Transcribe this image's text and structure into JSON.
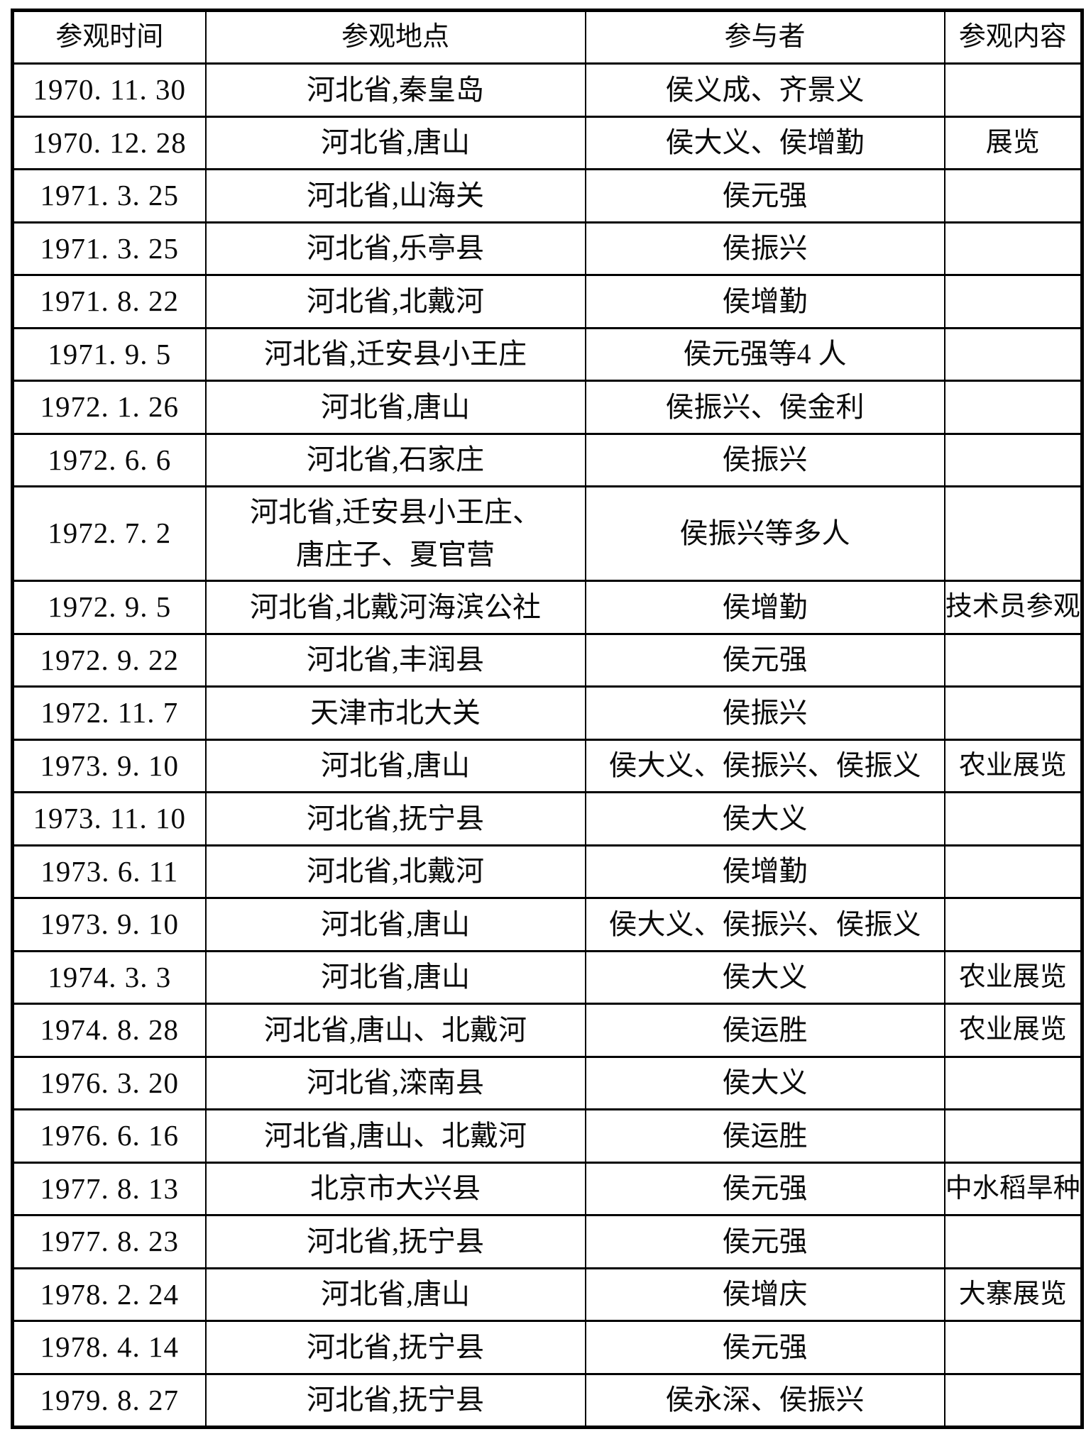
{
  "table": {
    "headers": [
      "参观时间",
      "参观地点",
      "参与者",
      "参观内容"
    ],
    "rows": [
      {
        "time": "1970. 11. 30",
        "location": "河北省,秦皇岛",
        "participants": "侯义成、齐景义",
        "content": ""
      },
      {
        "time": "1970. 12. 28",
        "location": "河北省,唐山",
        "participants": "侯大义、侯增勤",
        "content": "展览"
      },
      {
        "time": "1971. 3. 25",
        "location": "河北省,山海关",
        "participants": "侯元强",
        "content": ""
      },
      {
        "time": "1971. 3. 25",
        "location": "河北省,乐亭县",
        "participants": "侯振兴",
        "content": ""
      },
      {
        "time": "1971. 8. 22",
        "location": "河北省,北戴河",
        "participants": "侯增勤",
        "content": ""
      },
      {
        "time": "1971. 9. 5",
        "location": "河北省,迁安县小王庄",
        "participants": "侯元强等4 人",
        "content": ""
      },
      {
        "time": "1972. 1. 26",
        "location": "河北省,唐山",
        "participants": "侯振兴、侯金利",
        "content": ""
      },
      {
        "time": "1972. 6. 6",
        "location": "河北省,石家庄",
        "participants": "侯振兴",
        "content": ""
      },
      {
        "time": "1972. 7. 2",
        "location": "河北省,迁安县小王庄、\n唐庄子、夏官营",
        "participants": "侯振兴等多人",
        "content": ""
      },
      {
        "time": "1972. 9. 5",
        "location": "河北省,北戴河海滨公社",
        "participants": "侯增勤",
        "content": "技术员参观"
      },
      {
        "time": "1972. 9. 22",
        "location": "河北省,丰润县",
        "participants": "侯元强",
        "content": ""
      },
      {
        "time": "1972. 11. 7",
        "location": "天津市北大关",
        "participants": "侯振兴",
        "content": ""
      },
      {
        "time": "1973. 9. 10",
        "location": "河北省,唐山",
        "participants": "侯大义、侯振兴、侯振义",
        "content": "农业展览"
      },
      {
        "time": "1973. 11. 10",
        "location": "河北省,抚宁县",
        "participants": "侯大义",
        "content": ""
      },
      {
        "time": "1973. 6. 11",
        "location": "河北省,北戴河",
        "participants": "侯增勤",
        "content": ""
      },
      {
        "time": "1973. 9. 10",
        "location": "河北省,唐山",
        "participants": "侯大义、侯振兴、侯振义",
        "content": ""
      },
      {
        "time": "1974. 3. 3",
        "location": "河北省,唐山",
        "participants": "侯大义",
        "content": "农业展览"
      },
      {
        "time": "1974. 8. 28",
        "location": "河北省,唐山、北戴河",
        "participants": "侯运胜",
        "content": "农业展览"
      },
      {
        "time": "1976. 3. 20",
        "location": "河北省,滦南县",
        "participants": "侯大义",
        "content": ""
      },
      {
        "time": "1976. 6. 16",
        "location": "河北省,唐山、北戴河",
        "participants": "侯运胜",
        "content": ""
      },
      {
        "time": "1977. 8. 13",
        "location": "北京市大兴县",
        "participants": "侯元强",
        "content": "中水稻旱种"
      },
      {
        "time": "1977. 8. 23",
        "location": "河北省,抚宁县",
        "participants": "侯元强",
        "content": ""
      },
      {
        "time": "1978. 2. 24",
        "location": "河北省,唐山",
        "participants": "侯增庆",
        "content": "大寨展览"
      },
      {
        "time": "1978. 4. 14",
        "location": "河北省,抚宁县",
        "participants": "侯元强",
        "content": ""
      },
      {
        "time": "1979. 8. 27",
        "location": "河北省,抚宁县",
        "participants": "侯永深、侯振兴",
        "content": ""
      }
    ]
  }
}
